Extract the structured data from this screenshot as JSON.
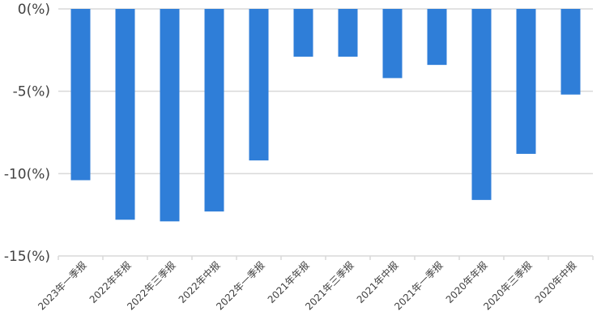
{
  "chart_data": {
    "type": "bar",
    "categories": [
      "2023年一季报",
      "2022年年报",
      "2022年三季报",
      "2022年中报",
      "2022年一季报",
      "2021年年报",
      "2021年三季报",
      "2021年中报",
      "2021年一季报",
      "2020年年报",
      "2020年三季报",
      "2020年中报"
    ],
    "values": [
      -10.4,
      -12.8,
      -12.9,
      -12.3,
      -9.2,
      -2.9,
      -2.9,
      -4.2,
      -3.4,
      -11.6,
      -8.8,
      -5.2
    ],
    "ylim": [
      -15,
      0
    ],
    "yticks": [
      0,
      -5,
      -10,
      -15
    ],
    "ytick_labels": [
      "0(%)",
      "-5(%)",
      "-10(%)",
      "-15(%)"
    ],
    "grid": true,
    "bar_color": "#2f7ed8",
    "grid_color": "#d9d9d9"
  }
}
